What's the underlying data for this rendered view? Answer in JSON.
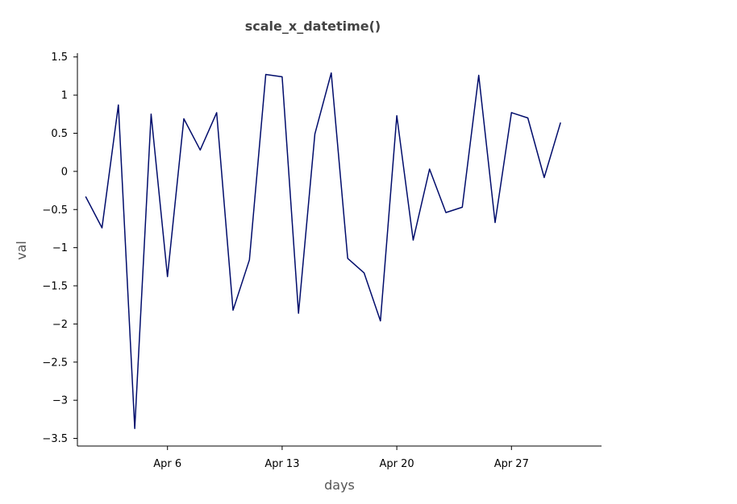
{
  "chart_data": {
    "type": "line",
    "title": "scale_x_datetime()",
    "xlabel": "days",
    "ylabel": "val",
    "x_ticks": [
      {
        "date": "2020-04-06",
        "label": "Apr 6"
      },
      {
        "date": "2020-04-13",
        "label": "Apr 13"
      },
      {
        "date": "2020-04-20",
        "label": "Apr 20"
      },
      {
        "date": "2020-04-27",
        "label": "Apr 27"
      }
    ],
    "y_ticks": [
      {
        "value": 1.5,
        "label": "1.5"
      },
      {
        "value": 1,
        "label": "1"
      },
      {
        "value": 0.5,
        "label": "0.5"
      },
      {
        "value": 0,
        "label": "0"
      },
      {
        "value": -0.5,
        "label": "−0.5"
      },
      {
        "value": -1,
        "label": "−1"
      },
      {
        "value": -1.5,
        "label": "−1.5"
      },
      {
        "value": -2,
        "label": "−2"
      },
      {
        "value": -2.5,
        "label": "−2.5"
      },
      {
        "value": -3,
        "label": "−3"
      },
      {
        "value": -3.5,
        "label": "−3.5"
      }
    ],
    "xlim": [
      "2020-03-31T12:00",
      "2020-05-02T12:00"
    ],
    "ylim": [
      -3.6,
      1.55
    ],
    "grid": false,
    "series": [
      {
        "color": "#000c6b",
        "points": [
          {
            "x": "2020-04-01",
            "y": -0.33
          },
          {
            "x": "2020-04-02",
            "y": -0.74
          },
          {
            "x": "2020-04-03",
            "y": 0.87
          },
          {
            "x": "2020-04-04",
            "y": -3.37
          },
          {
            "x": "2020-04-05",
            "y": 0.75
          },
          {
            "x": "2020-04-06",
            "y": -1.38
          },
          {
            "x": "2020-04-07",
            "y": 0.69
          },
          {
            "x": "2020-04-08",
            "y": 0.28
          },
          {
            "x": "2020-04-09",
            "y": 0.77
          },
          {
            "x": "2020-04-10",
            "y": -1.82
          },
          {
            "x": "2020-04-11",
            "y": -1.16
          },
          {
            "x": "2020-04-12",
            "y": 1.27
          },
          {
            "x": "2020-04-13",
            "y": 1.24
          },
          {
            "x": "2020-04-14",
            "y": -1.86
          },
          {
            "x": "2020-04-15",
            "y": 0.49
          },
          {
            "x": "2020-04-16",
            "y": 1.29
          },
          {
            "x": "2020-04-17",
            "y": -1.14
          },
          {
            "x": "2020-04-18",
            "y": -1.33
          },
          {
            "x": "2020-04-19",
            "y": -1.96
          },
          {
            "x": "2020-04-20",
            "y": 0.73
          },
          {
            "x": "2020-04-21",
            "y": -0.9
          },
          {
            "x": "2020-04-22",
            "y": 0.03
          },
          {
            "x": "2020-04-23",
            "y": -0.54
          },
          {
            "x": "2020-04-24",
            "y": -0.47
          },
          {
            "x": "2020-04-25",
            "y": 1.26
          },
          {
            "x": "2020-04-26",
            "y": -0.67
          },
          {
            "x": "2020-04-27",
            "y": 0.77
          },
          {
            "x": "2020-04-28",
            "y": 0.7
          },
          {
            "x": "2020-04-29",
            "y": -0.08
          },
          {
            "x": "2020-04-30",
            "y": 0.64
          }
        ]
      }
    ]
  }
}
